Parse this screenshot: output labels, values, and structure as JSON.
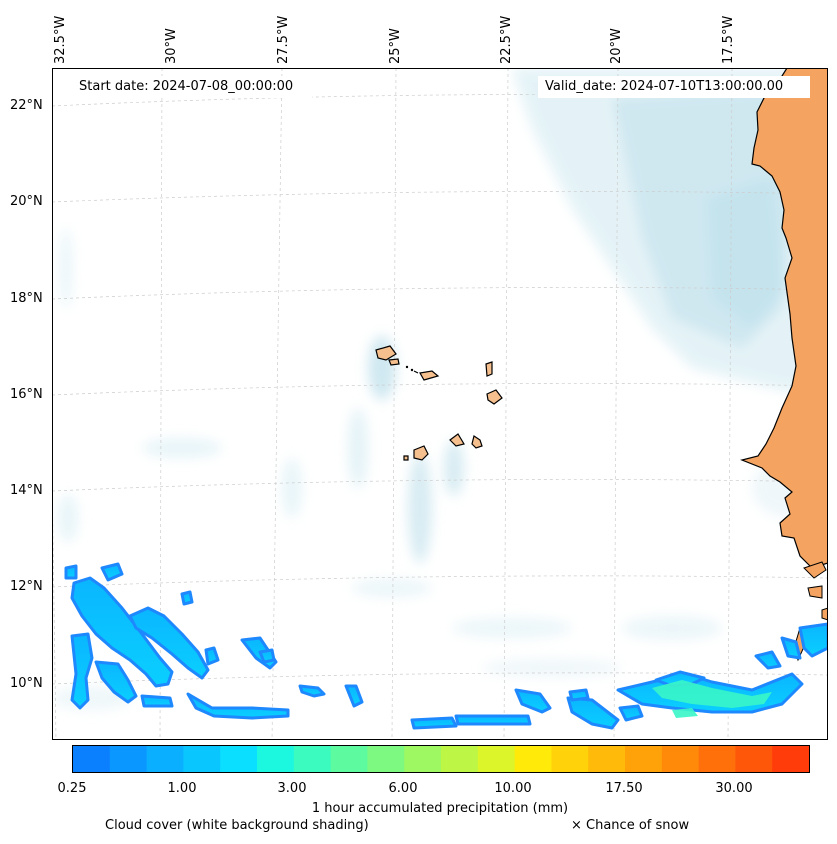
{
  "map": {
    "lon_ticks": [
      "32.5°W",
      "30°W",
      "27.5°W",
      "25°W",
      "22.5°W",
      "20°W",
      "17.5°W"
    ],
    "lat_ticks": [
      "22°N",
      "20°N",
      "18°N",
      "16°N",
      "14°N",
      "12°N",
      "10°N"
    ],
    "start_date": "Start date: 2024-07-08_00:00:00",
    "valid_date": "Valid_date: 2024-07-10T13:00:00.00",
    "land_color": "#f4a460",
    "island_color": "#f5bf8e",
    "cloud_color": "#a9d6e5",
    "grid": "dashed light gray"
  },
  "colorbar": {
    "colors": [
      "#0a80ff",
      "#0a97ff",
      "#0aafff",
      "#0ac6ff",
      "#0adfff",
      "#1cf7e0",
      "#3cfbbf",
      "#5dfa9f",
      "#7df880",
      "#9df862",
      "#bdf645",
      "#dcf52a",
      "#ffea0a",
      "#ffd20a",
      "#ffba0a",
      "#ffa20a",
      "#ff8a0a",
      "#ff700a",
      "#ff570a",
      "#ff3c0a"
    ],
    "ticks": [
      "0.25",
      "1.00",
      "3.00",
      "6.00",
      "10.00",
      "17.50",
      "30.00"
    ],
    "label": "1 hour accumulated precipitation (mm)"
  },
  "legend": {
    "cloud_cover": "Cloud cover (white background shading)",
    "snow": "× Chance of snow"
  }
}
